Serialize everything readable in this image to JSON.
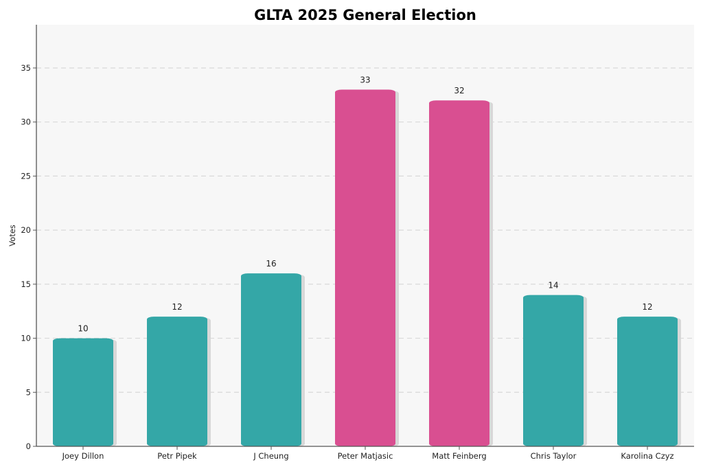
{
  "chart_data": {
    "type": "bar",
    "title": "GLTA 2025 General Election",
    "xlabel": "",
    "ylabel": "Votes",
    "categories": [
      "Joey Dillon",
      "Petr Pipek",
      "J Cheung",
      "Peter Matjasic",
      "Matt Feinberg",
      "Chris Taylor",
      "Karolina Czyz"
    ],
    "values": [
      10,
      12,
      16,
      33,
      32,
      14,
      12
    ],
    "data_labels": [
      "10",
      "12",
      "16",
      "33",
      "32",
      "14",
      "12"
    ],
    "bar_colors": [
      "#34a7a7",
      "#34a7a7",
      "#34a7a7",
      "#d94f91",
      "#d94f91",
      "#34a7a7",
      "#34a7a7"
    ],
    "ylim": [
      0,
      39
    ],
    "yticks": [
      0,
      5,
      10,
      15,
      20,
      25,
      30,
      35
    ],
    "ytick_labels": [
      "0",
      "5",
      "10",
      "15",
      "20",
      "25",
      "30",
      "35"
    ],
    "grid": "horizontal dashed",
    "legend": "none",
    "colors": {
      "plot_background": "#f7f7f7",
      "grid": "#d9d9d9",
      "spine": "#555555",
      "shadow": "#d8d8d8"
    }
  }
}
